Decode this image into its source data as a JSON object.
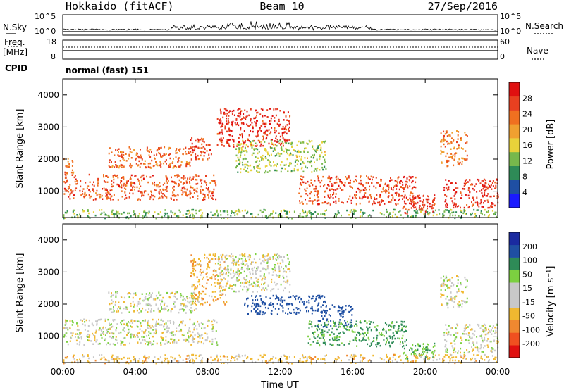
{
  "header": {
    "station": "Hokkaido (fitACF)",
    "beam": "Beam 10",
    "date": "27/Sep/2016"
  },
  "status_panel": {
    "nsky_label": "N.Sky",
    "nsearch_label": "N.Search",
    "noise_ticks": [
      "10^5",
      "10^0"
    ],
    "freq_label_1": "Freq.",
    "freq_label_2": "[MHz]",
    "freq_ticks": [
      "18",
      "8"
    ],
    "nave_label": "Nave",
    "nave_ticks": [
      "60",
      "0"
    ],
    "cpid_label": "CPID",
    "cpid_value": "normal (fast) 151"
  },
  "colors": {
    "power_scale": [
      "#1a1aff",
      "#1f4fa3",
      "#2e8b57",
      "#77b84c",
      "#e8d23a",
      "#f0a030",
      "#f07020",
      "#e84020",
      "#e01010"
    ],
    "velocity_scale": [
      "#e01010",
      "#f05020",
      "#f08830",
      "#f0b830",
      "#c8c8c8",
      "#c8c8c8",
      "#7cd040",
      "#2e8b57",
      "#1f4fa3",
      "#1a2aa0"
    ]
  },
  "chart_data": [
    {
      "type": "heatmap",
      "panel": "power",
      "xlabel": "",
      "ylabel": "Slant Range [km]",
      "x_ticks": [
        "00:00",
        "04:00",
        "08:00",
        "12:00",
        "16:00",
        "20:00",
        "00:00"
      ],
      "y_ticks": [
        1000,
        2000,
        3000,
        4000
      ],
      "ylim": [
        180,
        4500
      ],
      "xlim_hours": [
        0,
        24
      ],
      "colorbar_label": "Power [dB]",
      "colorbar_ticks": [
        4,
        8,
        12,
        16,
        20,
        24,
        28
      ],
      "echo_regions_hours_km": [
        {
          "t": [
            0.0,
            8.5
          ],
          "r": [
            750,
            1550
          ],
          "level": 25
        },
        {
          "t": [
            0.0,
            0.6
          ],
          "r": [
            1500,
            2100
          ],
          "level": 22
        },
        {
          "t": [
            2.5,
            7.0
          ],
          "r": [
            1750,
            2400
          ],
          "level": 24
        },
        {
          "t": [
            7.0,
            8.2
          ],
          "r": [
            2000,
            2700
          ],
          "level": 26
        },
        {
          "t": [
            8.5,
            12.5
          ],
          "r": [
            2400,
            3600
          ],
          "level": 28
        },
        {
          "t": [
            8.5,
            12.7
          ],
          "r": [
            3100,
            3150
          ],
          "level": 30
        },
        {
          "t": [
            9.5,
            14.5
          ],
          "r": [
            1600,
            2600
          ],
          "level": 14
        },
        {
          "t": [
            13.0,
            19.5
          ],
          "r": [
            600,
            1500
          ],
          "level": 26
        },
        {
          "t": [
            18.5,
            20.5
          ],
          "r": [
            300,
            900
          ],
          "level": 27
        },
        {
          "t": [
            21.0,
            24.0
          ],
          "r": [
            500,
            1400
          ],
          "level": 28
        },
        {
          "t": [
            20.8,
            22.3
          ],
          "r": [
            1800,
            2900
          ],
          "level": 22
        },
        {
          "t": [
            0.0,
            24.0
          ],
          "r": [
            180,
            450
          ],
          "level": 12
        }
      ]
    },
    {
      "type": "heatmap",
      "panel": "velocity",
      "xlabel": "Time UT",
      "ylabel": "Slant Range [km]",
      "x_ticks": [
        "00:00",
        "04:00",
        "08:00",
        "12:00",
        "16:00",
        "20:00",
        "00:00"
      ],
      "y_ticks": [
        1000,
        2000,
        3000,
        4000
      ],
      "ylim": [
        180,
        4500
      ],
      "xlim_hours": [
        0,
        24
      ],
      "colorbar_label": "Velocity [m s⁻¹]",
      "colorbar_ticks": [
        -200,
        -100,
        -50,
        -15,
        15,
        50,
        100,
        200
      ],
      "echo_regions_hours_km": [
        {
          "t": [
            0.0,
            8.5
          ],
          "r": [
            750,
            1550
          ],
          "v": 0
        },
        {
          "t": [
            2.5,
            7.5
          ],
          "r": [
            1750,
            2400
          ],
          "v": 0
        },
        {
          "t": [
            7.0,
            9.0
          ],
          "r": [
            2000,
            3600
          ],
          "v": -40
        },
        {
          "t": [
            8.5,
            12.5
          ],
          "r": [
            2400,
            3600
          ],
          "v": 0
        },
        {
          "t": [
            8.5,
            12.7
          ],
          "r": [
            3100,
            3150
          ],
          "v": 0
        },
        {
          "t": [
            10.0,
            14.5
          ],
          "r": [
            1700,
            2300
          ],
          "v": 150
        },
        {
          "t": [
            14.0,
            16.0
          ],
          "r": [
            1300,
            2000
          ],
          "v": 160
        },
        {
          "t": [
            13.5,
            19.0
          ],
          "r": [
            700,
            1500
          ],
          "v": 60
        },
        {
          "t": [
            18.5,
            20.5
          ],
          "r": [
            300,
            800
          ],
          "v": 40
        },
        {
          "t": [
            21.0,
            24.0
          ],
          "r": [
            500,
            1400
          ],
          "v": 0
        },
        {
          "t": [
            20.8,
            22.3
          ],
          "r": [
            1900,
            2900
          ],
          "v": 0
        },
        {
          "t": [
            0.0,
            24.0
          ],
          "r": [
            180,
            450
          ],
          "v": -30
        }
      ]
    }
  ]
}
